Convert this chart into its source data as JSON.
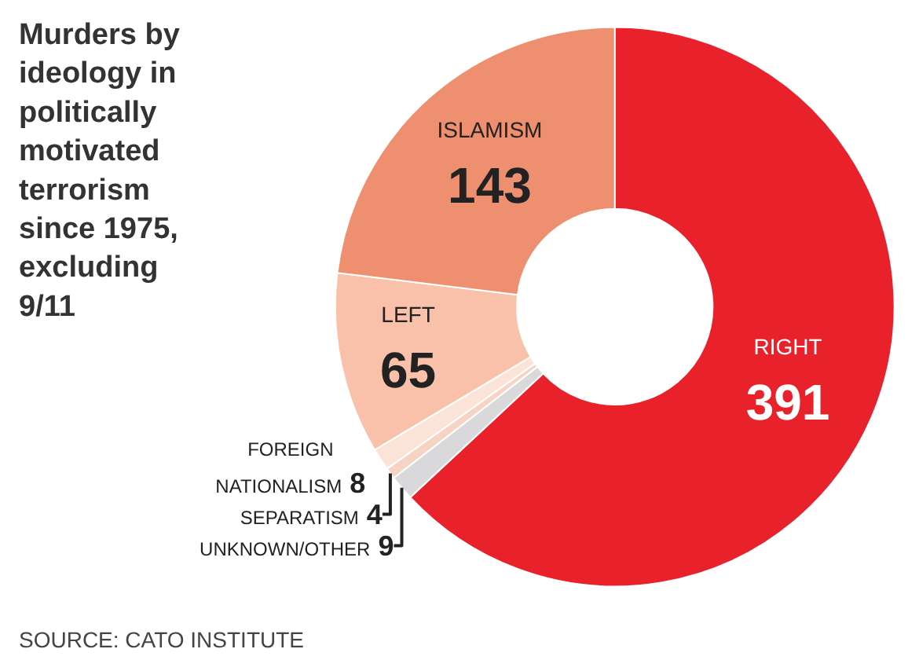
{
  "chart_data": {
    "type": "donut",
    "title": "Murders by ideology in politically motivated terrorism since 1975, excluding 9/11",
    "categories": [
      "RIGHT",
      "UNKNOWN/OTHER",
      "SEPARATISM",
      "FOREIGN NATIONALISM",
      "LEFT",
      "ISLAMISM"
    ],
    "values": [
      391,
      9,
      4,
      8,
      65,
      143
    ],
    "colors": [
      "#e8212b",
      "#d9d9db",
      "#f7d3c4",
      "#fbe3d8",
      "#f9c1aa",
      "#ee8f70"
    ],
    "data_labels": true,
    "legend": false,
    "annotations": [
      "SOURCE: CATO INSTITUTE"
    ]
  }
}
